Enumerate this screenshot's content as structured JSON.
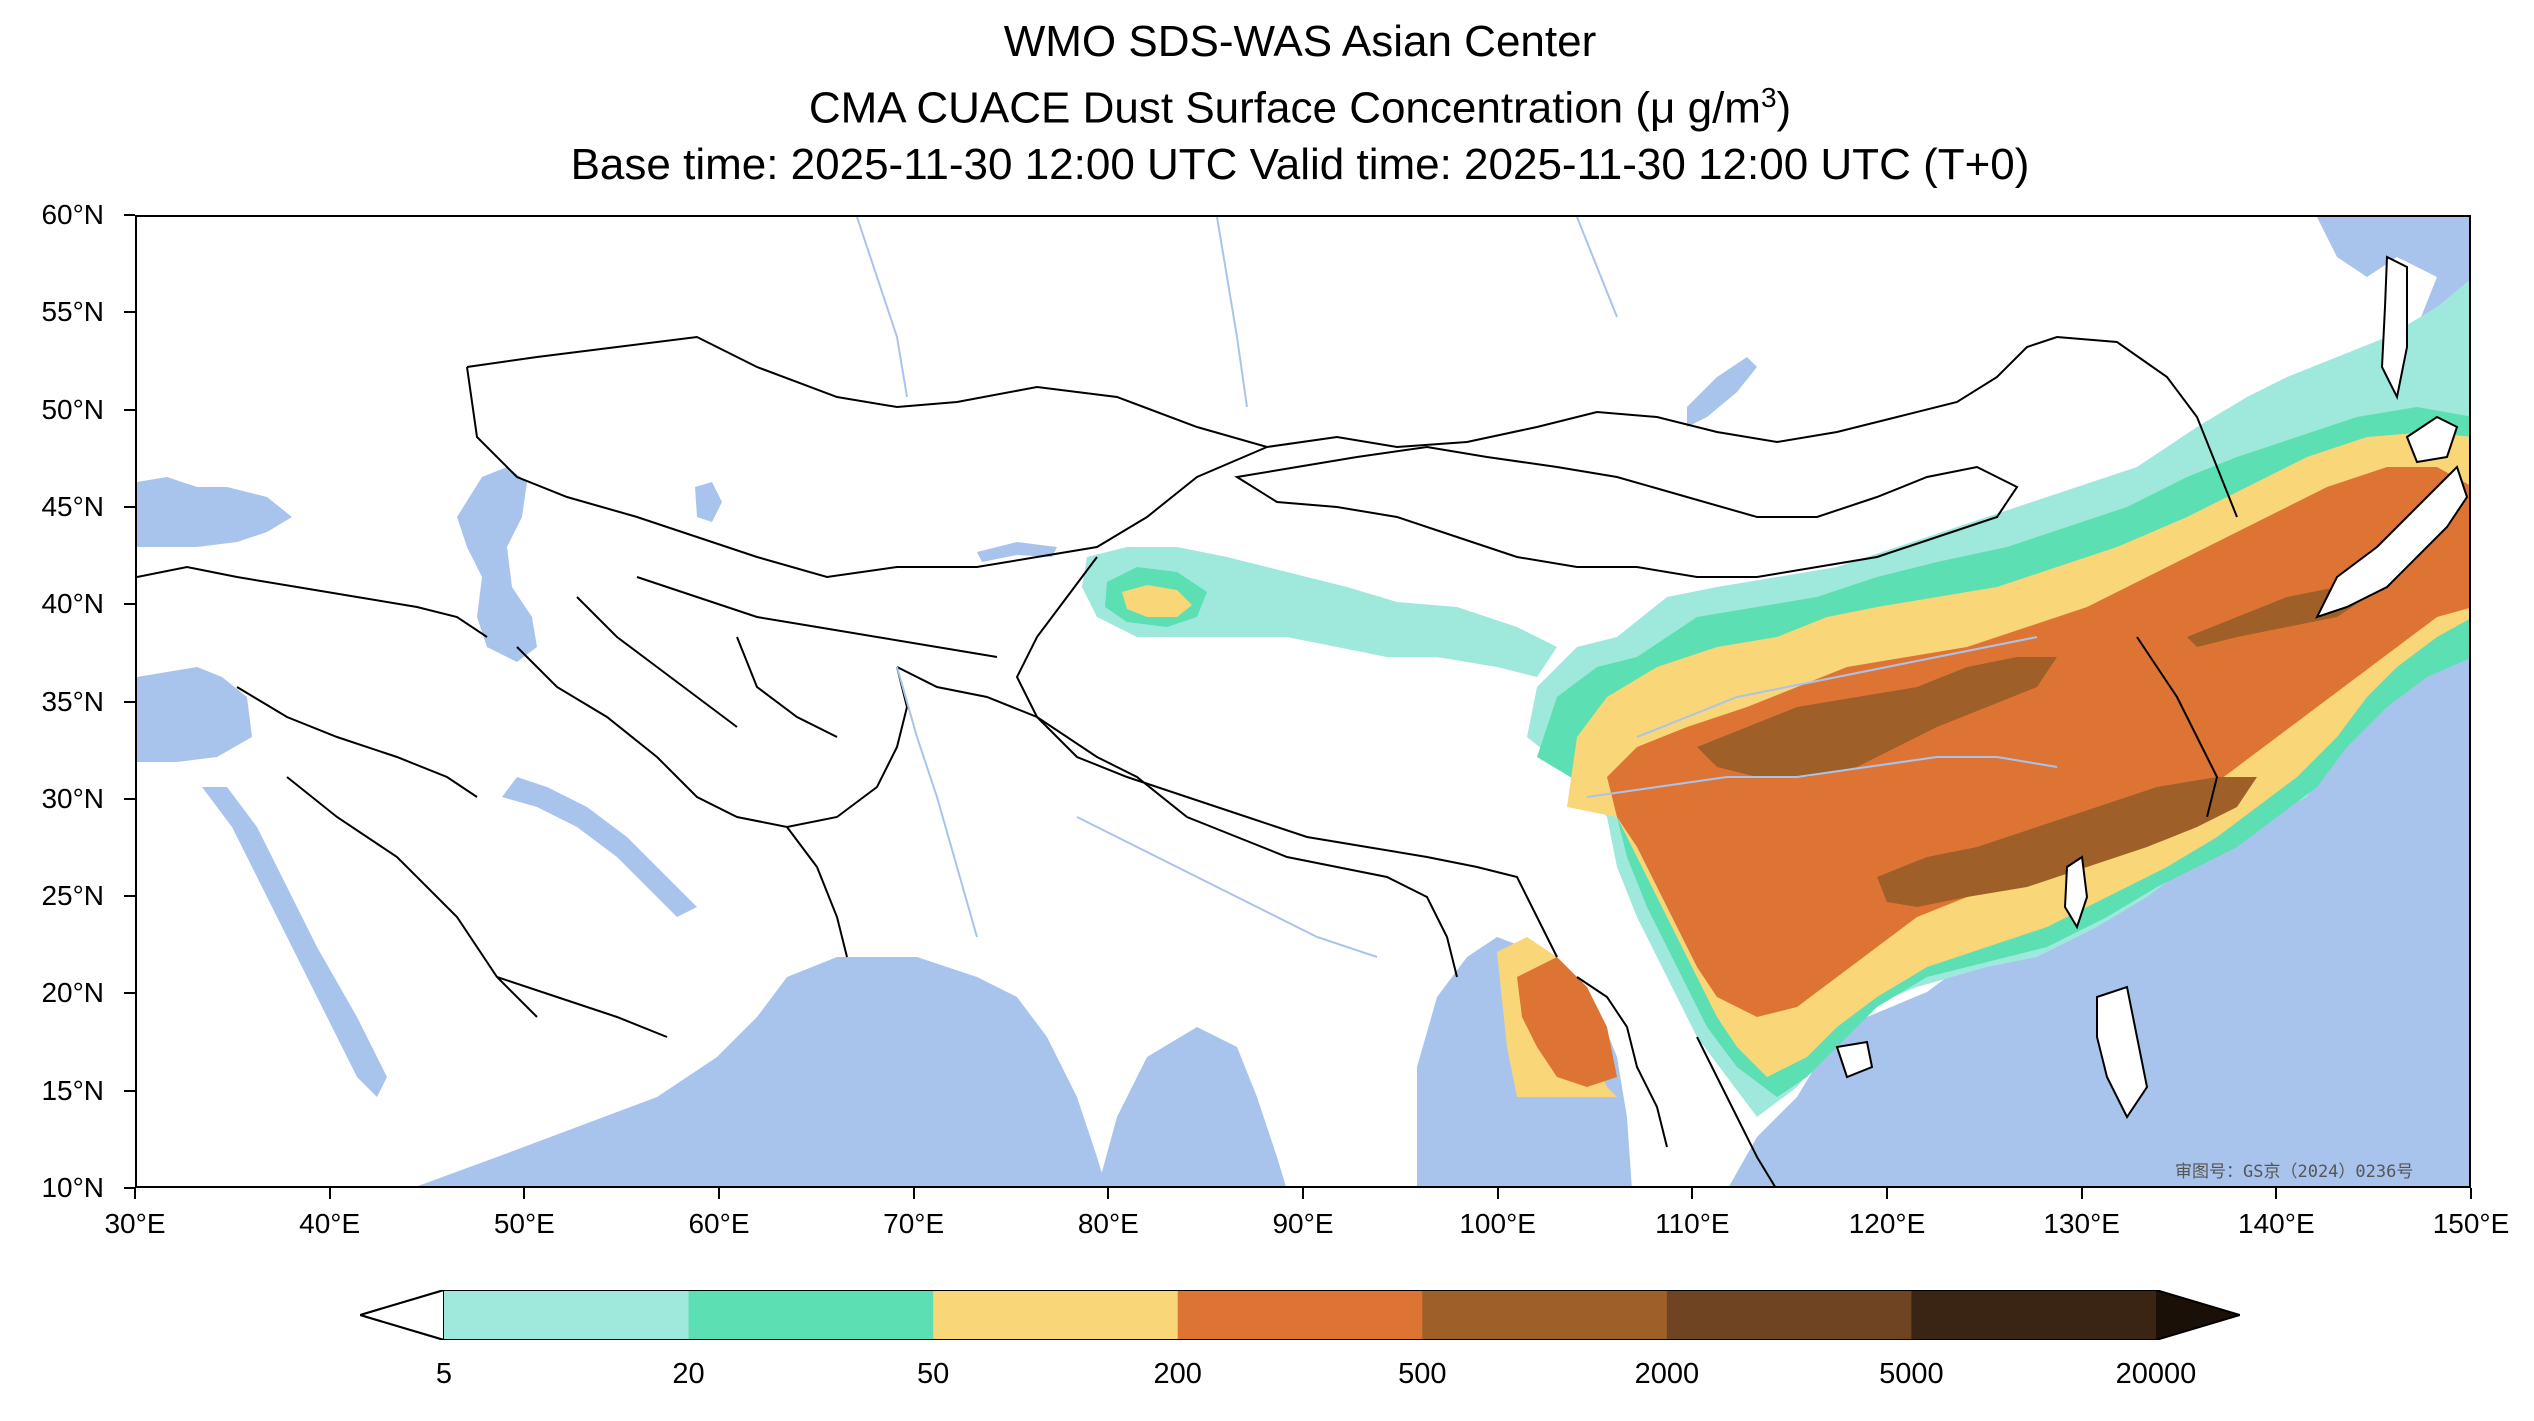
{
  "title": {
    "line1": "WMO SDS-WAS Asian Center",
    "line2_prefix": "CMA CUACE Dust Surface Concentration (",
    "line2_unit": "μ g/m",
    "line2_sup": "3",
    "line2_suffix": ")",
    "line3": "Base time: 2025-11-30 12:00 UTC Valid time: 2025-11-30 12:00 UTC (T+0)"
  },
  "map": {
    "lon_range": [
      30,
      150
    ],
    "lat_range": [
      10,
      60
    ],
    "lat_ticks": [
      {
        "value": 60,
        "label": "60°N"
      },
      {
        "value": 55,
        "label": "55°N"
      },
      {
        "value": 50,
        "label": "50°N"
      },
      {
        "value": 45,
        "label": "45°N"
      },
      {
        "value": 40,
        "label": "40°N"
      },
      {
        "value": 35,
        "label": "35°N"
      },
      {
        "value": 30,
        "label": "30°N"
      },
      {
        "value": 25,
        "label": "25°N"
      },
      {
        "value": 20,
        "label": "20°N"
      },
      {
        "value": 15,
        "label": "15°N"
      },
      {
        "value": 10,
        "label": "10°N"
      }
    ],
    "lon_ticks": [
      {
        "value": 30,
        "label": "30°E"
      },
      {
        "value": 40,
        "label": "40°E"
      },
      {
        "value": 50,
        "label": "50°E"
      },
      {
        "value": 60,
        "label": "60°E"
      },
      {
        "value": 70,
        "label": "70°E"
      },
      {
        "value": 80,
        "label": "80°E"
      },
      {
        "value": 90,
        "label": "90°E"
      },
      {
        "value": 100,
        "label": "100°E"
      },
      {
        "value": 110,
        "label": "110°E"
      },
      {
        "value": 120,
        "label": "120°E"
      },
      {
        "value": 130,
        "label": "130°E"
      },
      {
        "value": 140,
        "label": "140°E"
      },
      {
        "value": 150,
        "label": "150°E"
      }
    ],
    "ocean_color": "#a9c4ec",
    "land_color": "#ffffff",
    "approval_text": "审图号：GS京（2024）0236号"
  },
  "colorbar": {
    "levels": [
      "5",
      "20",
      "50",
      "200",
      "500",
      "2000",
      "5000",
      "20000"
    ],
    "colors": [
      "#9ee8dc",
      "#5ddfb4",
      "#f9d678",
      "#de7434",
      "#9e6028",
      "#6e4422",
      "#3a2414"
    ],
    "under_color": "#ffffff",
    "over_color": "#1a1008"
  }
}
